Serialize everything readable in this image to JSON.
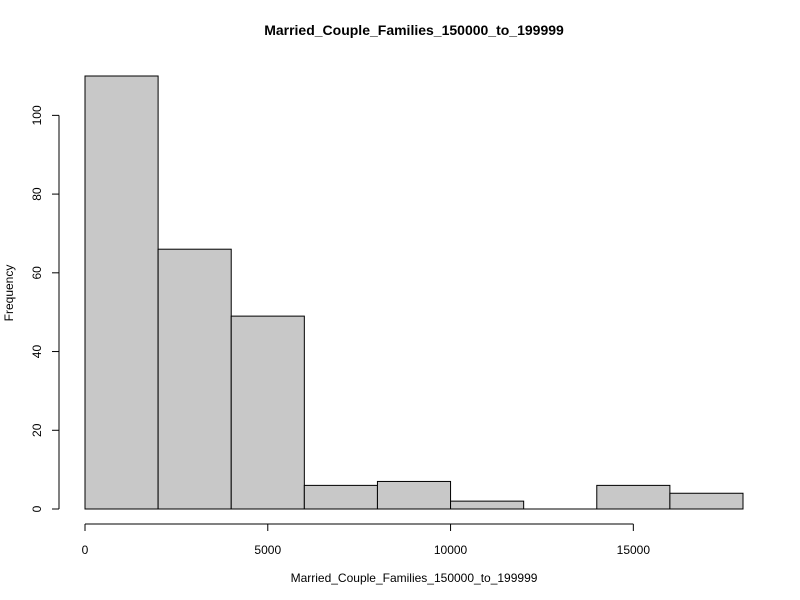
{
  "chart_data": {
    "type": "bar",
    "title": "Married_Couple_Families_150000_to_199999",
    "xlabel": "Married_Couple_Families_150000_to_199999",
    "ylabel": "Frequency",
    "bins": [
      {
        "start": 0,
        "end": 2000,
        "count": 110
      },
      {
        "start": 2000,
        "end": 4000,
        "count": 66
      },
      {
        "start": 4000,
        "end": 6000,
        "count": 49
      },
      {
        "start": 6000,
        "end": 8000,
        "count": 6
      },
      {
        "start": 8000,
        "end": 10000,
        "count": 7
      },
      {
        "start": 10000,
        "end": 12000,
        "count": 2
      },
      {
        "start": 12000,
        "end": 14000,
        "count": 0
      },
      {
        "start": 14000,
        "end": 16000,
        "count": 6
      },
      {
        "start": 16000,
        "end": 18000,
        "count": 4
      }
    ],
    "x_ticks": [
      0,
      5000,
      10000,
      15000
    ],
    "y_ticks": [
      0,
      20,
      40,
      60,
      80,
      100
    ],
    "xlim": [
      0,
      18000
    ],
    "ylim": [
      0,
      110
    ],
    "grid": false,
    "legend": "none",
    "bar_color": "#c8c8c8",
    "edge_color": "#000000"
  }
}
